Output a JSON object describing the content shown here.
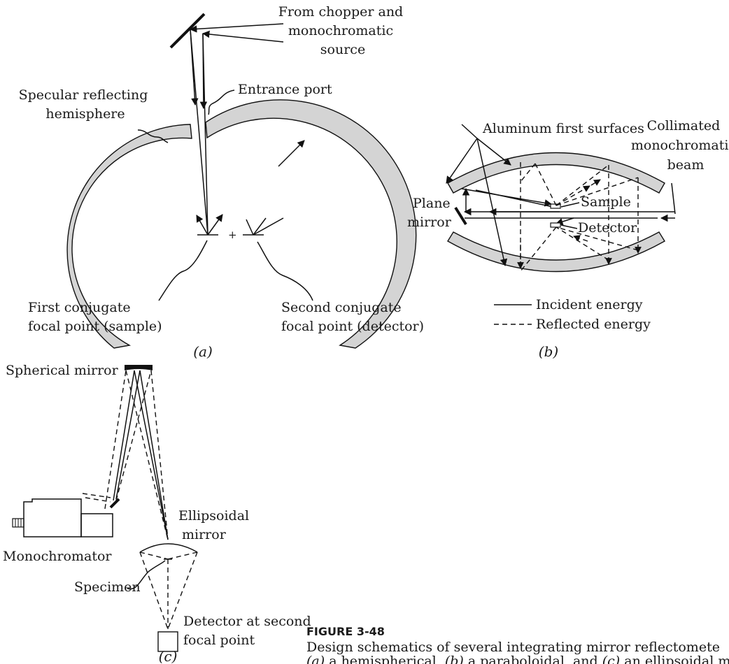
{
  "panel_a": {
    "label_source": [
      "From chopper and",
      "monochromatic",
      "source"
    ],
    "label_entrance": "Entrance port",
    "label_hemisphere": [
      "Specular reflecting",
      "hemisphere"
    ],
    "label_first": [
      "First conjugate",
      "focal point (sample)"
    ],
    "label_second": [
      "Second conjugate",
      "focal point (detector)"
    ],
    "sublabel": "(a)"
  },
  "panel_b": {
    "label_aluminum": "Aluminum first surfaces",
    "label_beam": [
      "Collimated",
      "monochromatic",
      "beam"
    ],
    "label_plane": [
      "Plane",
      "mirror"
    ],
    "label_sample": "Sample",
    "label_detector": "Detector",
    "legend": [
      "Incident energy",
      "Reflected energy"
    ],
    "sublabel": "(b)"
  },
  "panel_c": {
    "label_spherical": "Spherical mirror",
    "label_ellipsoidal": [
      "Ellipsoidal",
      "mirror"
    ],
    "label_monochromator": "Monochromator",
    "label_specimen": "Specimen",
    "label_detector": [
      "Detector at second",
      "focal point"
    ],
    "sublabel": "(c)"
  },
  "caption": {
    "figure_number": "FIGURE 3-48",
    "line1": "Design schematics of several integrating mirror reflectomete",
    "line2_prefix": "(a)",
    "line2_a": " a hemispherical, ",
    "line2_b_label": "(b)",
    "line2_b": " a paraboloidal, and ",
    "line2_c_label": "(c)",
    "line2_c": " an ellipsoidal m"
  }
}
